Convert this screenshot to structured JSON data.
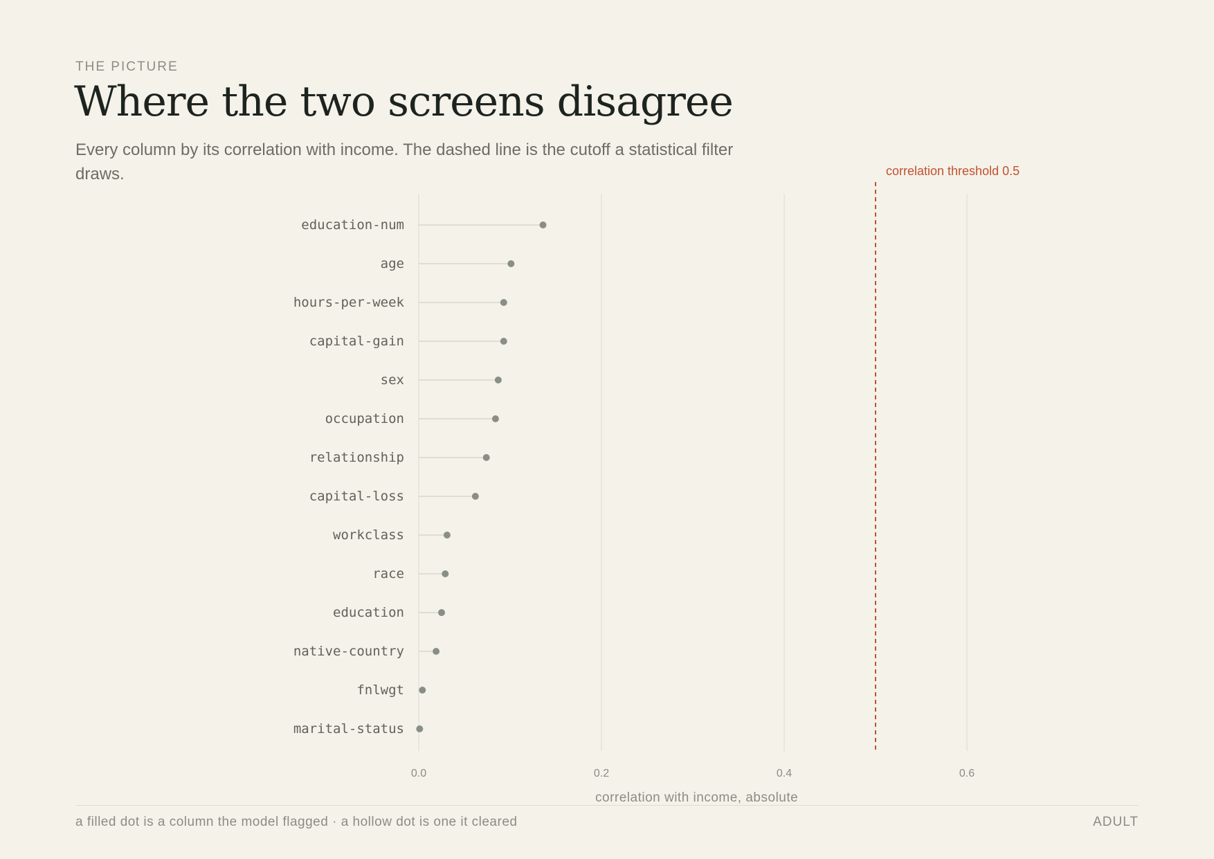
{
  "header": {
    "eyebrow": "THE PICTURE",
    "title": "Where the two screens disagree",
    "subtitle": "Every column by its correlation with income. The dashed line is the cutoff a statistical filter draws."
  },
  "footer": {
    "note": "a filled dot is a column the model flagged · a hollow dot is one it cleared",
    "dataset": "ADULT"
  },
  "colors": {
    "background": "#f5f2ea",
    "dot": "#8a8f86",
    "stem": "#d9d6ce",
    "grid": "#e4e1d9",
    "threshold": "#c0522f",
    "label": "#5f625b",
    "tick": "#8a8d84"
  },
  "chart_data": {
    "type": "lollipop",
    "orientation": "horizontal",
    "categories": [
      "education-num",
      "age",
      "hours-per-week",
      "capital-gain",
      "sex",
      "occupation",
      "relationship",
      "capital-loss",
      "workclass",
      "race",
      "education",
      "native-country",
      "fnlwgt",
      "marital-status"
    ],
    "values": [
      0.136,
      0.101,
      0.093,
      0.093,
      0.087,
      0.084,
      0.074,
      0.062,
      0.031,
      0.029,
      0.025,
      0.019,
      0.004,
      0.001
    ],
    "xlabel": "correlation with income, absolute",
    "xlim": [
      0,
      0.75
    ],
    "xticks": [
      "0.0",
      "0.2",
      "0.4",
      "0.6"
    ],
    "grid": true,
    "threshold": {
      "value": 0.5,
      "label": "correlation threshold 0.5"
    }
  }
}
